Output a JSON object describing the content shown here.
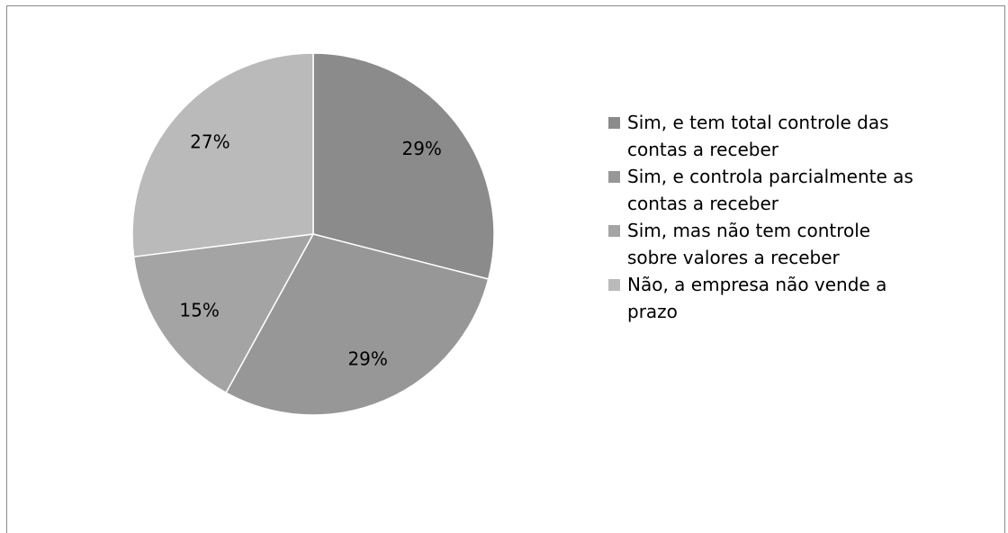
{
  "chart_data": {
    "type": "pie",
    "categories": [
      "Sim, e tem total controle das contas a receber",
      "Sim, e controla parcialmente as contas a receber",
      "Sim, mas não tem controle sobre valores a receber",
      "Não, a empresa não vende a prazo"
    ],
    "values": [
      29,
      29,
      15,
      27
    ],
    "value_labels": [
      "29%",
      "29%",
      "15%",
      "27%"
    ],
    "colors": [
      "#8b8b8b",
      "#979797",
      "#a4a4a4",
      "#bababa"
    ],
    "legend": "right"
  }
}
